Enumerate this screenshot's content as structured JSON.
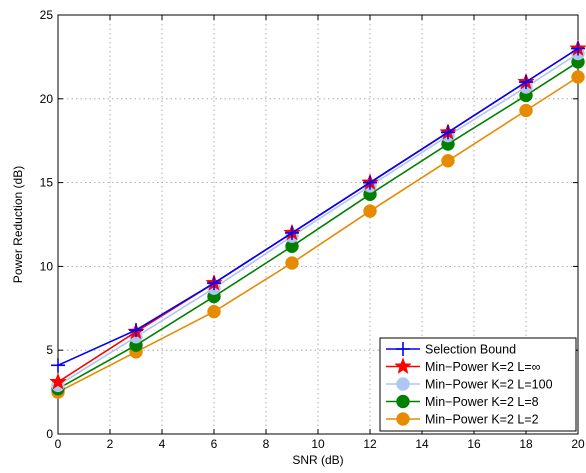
{
  "chart_data": {
    "type": "line",
    "title": "",
    "xlabel": "SNR (dB)",
    "ylabel": "Power Reduction (dB)",
    "xlim": [
      0,
      20
    ],
    "ylim": [
      0,
      25
    ],
    "x_ticks": [
      0,
      2,
      4,
      6,
      8,
      10,
      12,
      14,
      16,
      18,
      20
    ],
    "y_ticks": [
      0,
      5,
      10,
      15,
      20,
      25
    ],
    "grid": true,
    "legend_position": "bottom-right",
    "x": [
      0,
      3,
      6,
      9,
      12,
      15,
      18,
      20
    ],
    "series": [
      {
        "name": "Selection Bound",
        "color": "#0000ff",
        "marker": "plus",
        "values": [
          4.1,
          6.2,
          9.0,
          12.0,
          15.0,
          18.0,
          21.0,
          23.0
        ]
      },
      {
        "name": "Min−Power K=2 L=∞",
        "color": "#ff0000",
        "marker": "star",
        "values": [
          3.1,
          6.1,
          9.0,
          12.0,
          15.0,
          18.0,
          21.0,
          23.0
        ]
      },
      {
        "name": "Min−Power K=2 L=100",
        "color": "#aec6f0",
        "marker": "circle",
        "values": [
          2.9,
          5.8,
          8.7,
          11.8,
          14.8,
          17.8,
          20.7,
          22.7
        ]
      },
      {
        "name": "Min−Power K=2 L=8",
        "color": "#008000",
        "marker": "circle",
        "values": [
          2.7,
          5.3,
          8.2,
          11.2,
          14.3,
          17.3,
          20.2,
          22.2
        ]
      },
      {
        "name": "Min−Power K=2 L=2",
        "color": "#e68a00",
        "marker": "circle",
        "values": [
          2.5,
          4.9,
          7.3,
          10.2,
          13.3,
          16.3,
          19.3,
          21.3
        ]
      }
    ]
  }
}
